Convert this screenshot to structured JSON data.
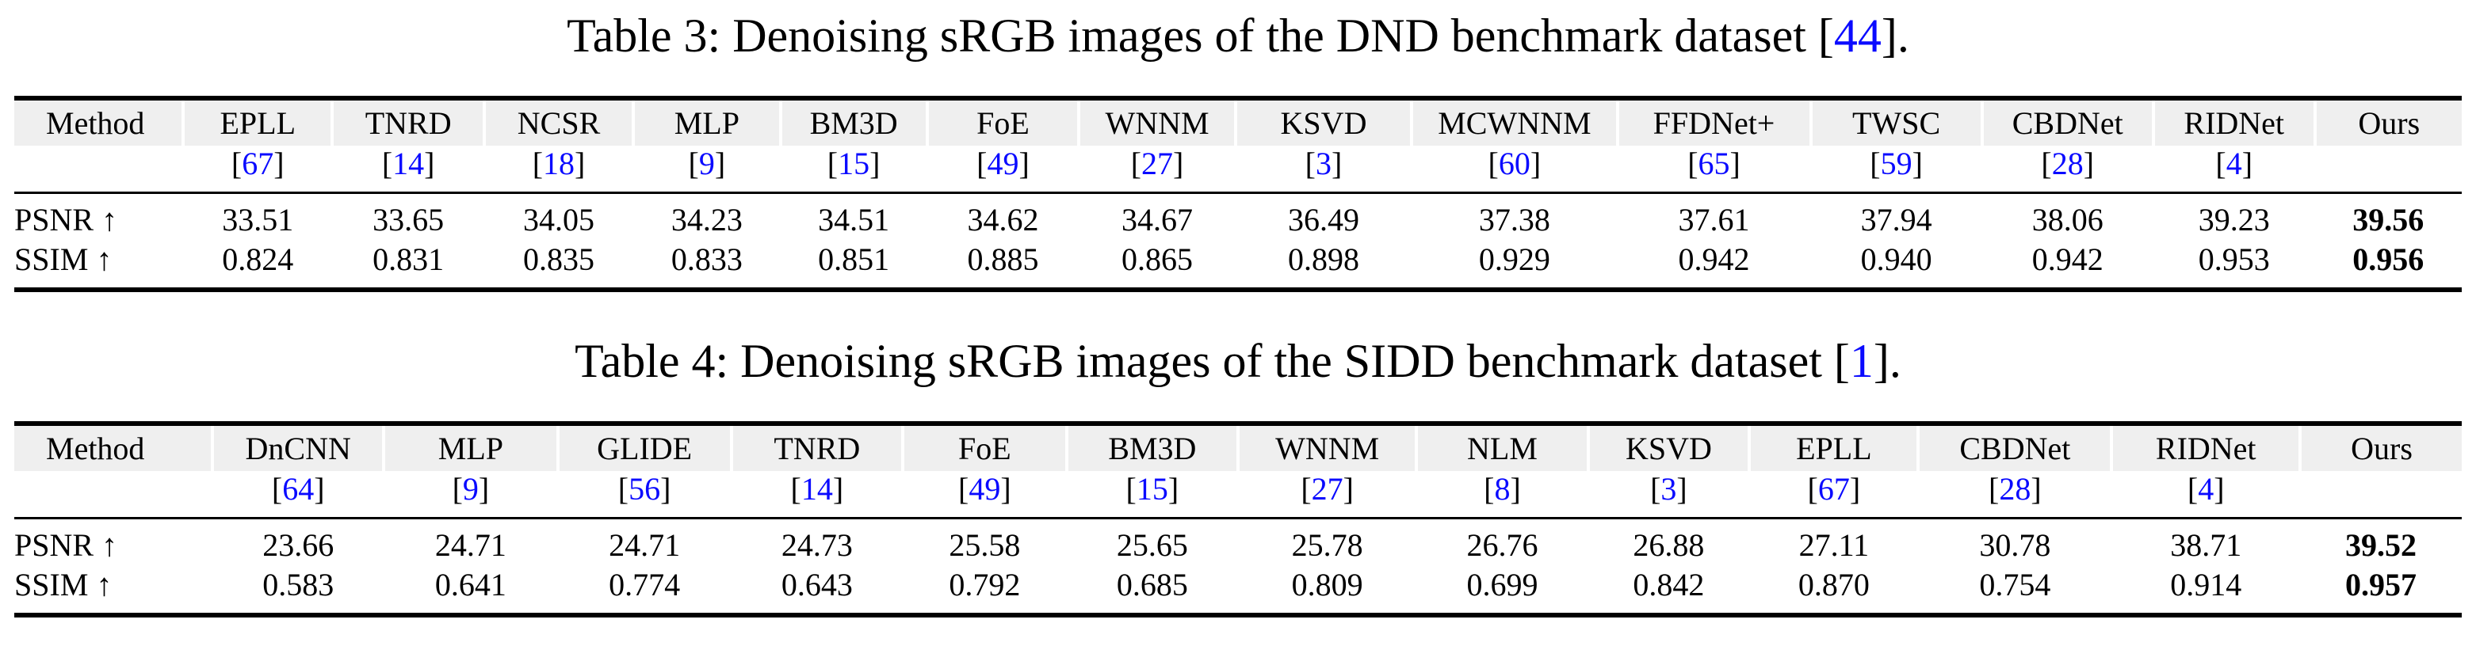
{
  "colors": {
    "citation_blue": "#0a0aff",
    "header_band_gray": "#efefef",
    "rule_black": "#000000",
    "page_background": "#ffffff"
  },
  "tables": [
    {
      "name": "table-3",
      "caption": {
        "text_before_cite": "Table 3: Denoising sRGB images of the DND benchmark dataset ",
        "citation": "44",
        "text_after_cite": "."
      },
      "columns": [
        {
          "label": "Method",
          "citation": null
        },
        {
          "label": "EPLL",
          "citation": "67"
        },
        {
          "label": "TNRD",
          "citation": "14"
        },
        {
          "label": "NCSR",
          "citation": "18"
        },
        {
          "label": "MLP",
          "citation": "9"
        },
        {
          "label": "BM3D",
          "citation": "15"
        },
        {
          "label": "FoE",
          "citation": "49"
        },
        {
          "label": "WNNM",
          "citation": "27"
        },
        {
          "label": "KSVD",
          "citation": "3"
        },
        {
          "label": "MCWNNM",
          "citation": "60"
        },
        {
          "label": "FFDNet+",
          "citation": "65"
        },
        {
          "label": "TWSC",
          "citation": "59"
        },
        {
          "label": "CBDNet",
          "citation": "28"
        },
        {
          "label": "RIDNet",
          "citation": "4"
        },
        {
          "label": "Ours",
          "citation": null
        }
      ],
      "rows": [
        {
          "label": "PSNR ↑",
          "values": [
            "33.51",
            "33.65",
            "34.05",
            "34.23",
            "34.51",
            "34.62",
            "34.67",
            "36.49",
            "37.38",
            "37.61",
            "37.94",
            "38.06",
            "39.23",
            "39.56"
          ],
          "bold_last": true
        },
        {
          "label": "SSIM ↑",
          "values": [
            "0.824",
            "0.831",
            "0.835",
            "0.833",
            "0.851",
            "0.885",
            "0.865",
            "0.898",
            "0.929",
            "0.942",
            "0.940",
            "0.942",
            "0.953",
            "0.956"
          ],
          "bold_last": true
        }
      ]
    },
    {
      "name": "table-4",
      "caption": {
        "text_before_cite": "Table 4: Denoising sRGB images of the SIDD benchmark dataset ",
        "citation": "1",
        "text_after_cite": "."
      },
      "columns": [
        {
          "label": "Method",
          "citation": null
        },
        {
          "label": "DnCNN",
          "citation": "64"
        },
        {
          "label": "MLP",
          "citation": "9"
        },
        {
          "label": "GLIDE",
          "citation": "56"
        },
        {
          "label": "TNRD",
          "citation": "14"
        },
        {
          "label": "FoE",
          "citation": "49"
        },
        {
          "label": "BM3D",
          "citation": "15"
        },
        {
          "label": "WNNM",
          "citation": "27"
        },
        {
          "label": "NLM",
          "citation": "8"
        },
        {
          "label": "KSVD",
          "citation": "3"
        },
        {
          "label": "EPLL",
          "citation": "67"
        },
        {
          "label": "CBDNet",
          "citation": "28"
        },
        {
          "label": "RIDNet",
          "citation": "4"
        },
        {
          "label": "Ours",
          "citation": null
        }
      ],
      "rows": [
        {
          "label": "PSNR ↑",
          "values": [
            "23.66",
            "24.71",
            "24.71",
            "24.73",
            "25.58",
            "25.65",
            "25.78",
            "26.76",
            "26.88",
            "27.11",
            "30.78",
            "38.71",
            "39.52"
          ],
          "bold_last": true
        },
        {
          "label": "SSIM ↑",
          "values": [
            "0.583",
            "0.641",
            "0.774",
            "0.643",
            "0.792",
            "0.685",
            "0.809",
            "0.699",
            "0.842",
            "0.870",
            "0.754",
            "0.914",
            "0.957"
          ],
          "bold_last": true
        }
      ]
    }
  ]
}
